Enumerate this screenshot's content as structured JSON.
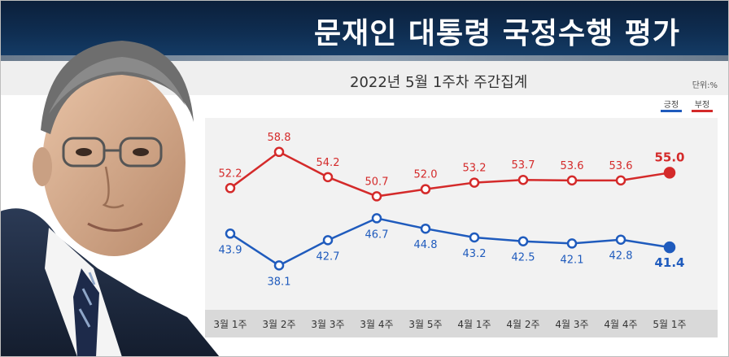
{
  "header": {
    "title": "문재인 대통령 국정수행 평가",
    "subtitle": "2022년 5월 1주차 주간집계",
    "unit": "단위:%"
  },
  "colors": {
    "positive": "#1f5bbd",
    "negative": "#d42a2a",
    "header_bg": "#0f2e52"
  },
  "chart_data": {
    "type": "line",
    "categories": [
      "3월 1주",
      "3월 2주",
      "3월 3주",
      "3월 4주",
      "3월 5주",
      "4월 1주",
      "4월 2주",
      "4월 3주",
      "4월 4주",
      "5월 1주"
    ],
    "series": [
      {
        "name": "긍정",
        "values": [
          43.9,
          38.1,
          42.7,
          46.7,
          44.8,
          43.2,
          42.5,
          42.1,
          42.8,
          41.4
        ]
      },
      {
        "name": "부정",
        "values": [
          52.2,
          58.8,
          54.2,
          50.7,
          52.0,
          53.2,
          53.7,
          53.6,
          53.6,
          55.0
        ]
      }
    ],
    "value_labels": {
      "긍정": [
        "43.9",
        "38.1",
        "42.7",
        "46.7",
        "44.8",
        "43.2",
        "42.5",
        "42.1",
        "42.8",
        "41.4"
      ],
      "부정": [
        "52.2",
        "58.8",
        "54.2",
        "50.7",
        "52.0",
        "53.2",
        "53.7",
        "53.6",
        "53.6",
        "55.0"
      ]
    },
    "legend": {
      "position": "top-right",
      "entries": [
        "긍정",
        "부정"
      ]
    },
    "grid": false
  }
}
